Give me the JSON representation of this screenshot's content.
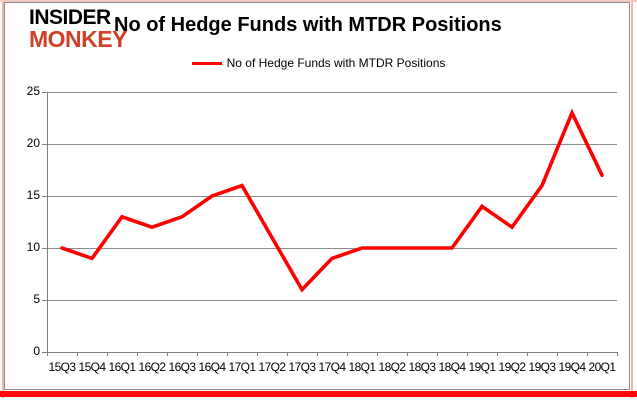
{
  "logo": {
    "line1": "INSIDER",
    "line2": "MONKEY"
  },
  "header": {
    "title": "No of Hedge Funds with MTDR Positions"
  },
  "legend": {
    "label": "No of Hedge Funds with MTDR Positions"
  },
  "colors": {
    "line": "#fe0000",
    "grid": "#8c8c8c",
    "axis": "#808080",
    "logo_red": "#cd4127",
    "border_pink": "#f2b6b1",
    "border_red": "#fb0c06"
  },
  "chart_data": {
    "type": "line",
    "title": "No of Hedge Funds with MTDR Positions",
    "categories": [
      "15Q3",
      "15Q4",
      "16Q1",
      "16Q2",
      "16Q3",
      "16Q4",
      "17Q1",
      "17Q2",
      "17Q3",
      "17Q4",
      "18Q1",
      "18Q2",
      "18Q3",
      "18Q4",
      "19Q1",
      "19Q2",
      "19Q3",
      "19Q4",
      "20Q1"
    ],
    "series": [
      {
        "name": "No of Hedge Funds with MTDR Positions",
        "values": [
          10,
          9,
          13,
          12,
          13,
          15,
          16,
          11,
          6,
          9,
          10,
          10,
          10,
          10,
          14,
          12,
          16,
          23,
          17
        ]
      }
    ],
    "xlabel": "",
    "ylabel": "",
    "ylim": [
      0,
      25
    ],
    "yticks": [
      0,
      5,
      10,
      15,
      20,
      25
    ],
    "grid": true,
    "legend_position": "top-center"
  }
}
